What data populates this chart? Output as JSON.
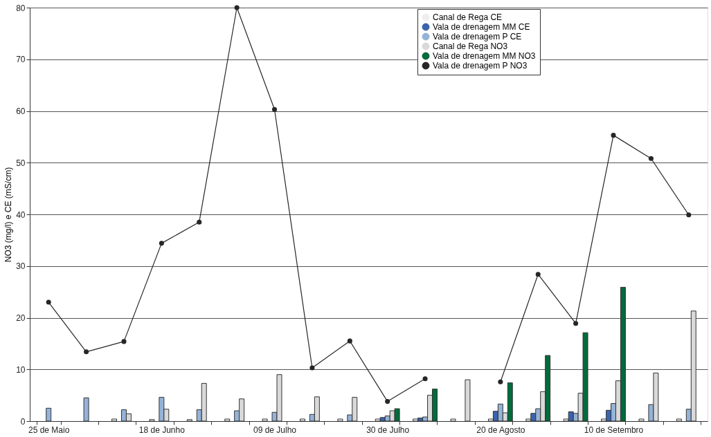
{
  "chart_data": {
    "type": "bar",
    "ylabel": "NO3 (mg/l) e CE (mS/cm)",
    "categories": [
      "25 de Maio",
      null,
      null,
      "18 de Junho",
      null,
      null,
      "09 de Julho",
      null,
      null,
      "30 de Julho",
      null,
      null,
      "20 de Agosto",
      null,
      null,
      "10 de Setembro",
      null,
      null
    ],
    "series": [
      {
        "name": "Canal de Rega CE",
        "color": "#eeeeee",
        "values": [
          null,
          null,
          0.4,
          0.3,
          0.3,
          0.4,
          0.4,
          0.4,
          0.4,
          0.4,
          0.4,
          0.4,
          0.4,
          0.4,
          0.4,
          0.4,
          0.4,
          0.4
        ]
      },
      {
        "name": "Vala de drenagem MM CE",
        "color": "#3b64ad",
        "values": [
          null,
          null,
          null,
          null,
          null,
          null,
          null,
          null,
          null,
          0.7,
          0.6,
          null,
          1.9,
          1.5,
          1.8,
          2.1,
          null,
          null
        ]
      },
      {
        "name": "Vala de drenagem P CE",
        "color": "#95b3d7",
        "values": [
          2.5,
          4.5,
          2.2,
          4.6,
          2.2,
          2.0,
          1.7,
          1.3,
          1.2,
          1.0,
          0.8,
          null,
          3.3,
          2.4,
          1.5,
          3.4,
          3.2,
          2.3
        ]
      },
      {
        "name": "Canal de Rega NO3",
        "color": "#d9d9d9",
        "values": [
          null,
          null,
          1.4,
          2.3,
          7.3,
          4.3,
          9.0,
          4.7,
          4.6,
          2.0,
          5.0,
          8.0,
          1.6,
          5.7,
          5.4,
          7.8,
          9.3,
          21.3
        ]
      },
      {
        "name": "Vala de drenagem MM NO3",
        "color": "#006c3b",
        "values": [
          null,
          null,
          null,
          null,
          null,
          null,
          null,
          null,
          null,
          2.4,
          6.2,
          null,
          7.4,
          12.7,
          17.1,
          25.9,
          null,
          null
        ]
      },
      {
        "name": "Vala de drenagem P NO3",
        "type": "line",
        "color": "#262626",
        "values": [
          23,
          13.4,
          15.4,
          34.4,
          38.5,
          80,
          60.3,
          10.3,
          15.5,
          3.8,
          8.2,
          null,
          7.6,
          28.4,
          18.9,
          55.3,
          50.8,
          39.9
        ]
      }
    ],
    "ylim": [
      0,
      80
    ],
    "yticks": [
      0,
      10,
      20,
      30,
      40,
      50,
      60,
      70,
      80
    ],
    "grid": "y",
    "legend": "top right",
    "marker": "circle",
    "line_style": "solid"
  }
}
